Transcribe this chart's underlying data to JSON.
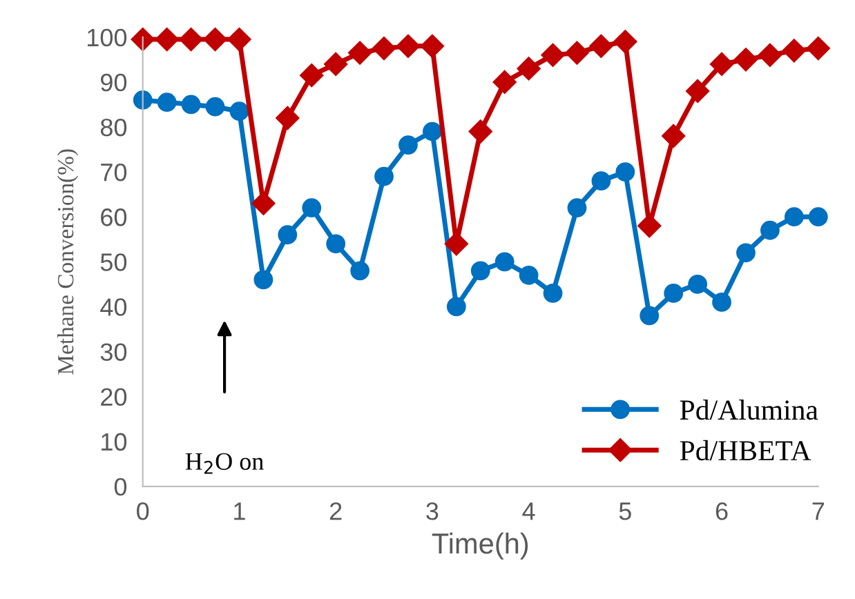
{
  "chart_data": {
    "type": "line",
    "xlabel": "Time(h)",
    "ylabel": "Methane Conversion(%)",
    "x": [
      0,
      0.25,
      0.5,
      0.75,
      1,
      1.25,
      1.5,
      1.75,
      2,
      2.25,
      2.5,
      2.75,
      3,
      3.25,
      3.5,
      3.75,
      4,
      4.25,
      4.5,
      4.75,
      5,
      5.25,
      5.5,
      5.75,
      6,
      6.25,
      6.5,
      6.75,
      7
    ],
    "series": [
      {
        "name": "Pd/Alumina",
        "color": "#0070c0",
        "marker": "circle",
        "values": [
          86,
          85.5,
          85,
          84.5,
          83.5,
          46,
          56,
          62,
          54,
          48,
          69,
          76,
          79,
          40,
          48,
          50,
          47,
          43,
          62,
          68,
          70,
          38,
          43,
          45,
          41,
          52,
          57,
          60,
          60
        ]
      },
      {
        "name": "Pd/HBETA",
        "color": "#c00000",
        "marker": "diamond",
        "values": [
          99.5,
          99.5,
          99.5,
          99.5,
          99.5,
          63,
          82,
          91.5,
          94,
          96.5,
          97.5,
          98,
          98,
          54,
          79,
          90,
          93,
          96,
          96.5,
          98,
          99,
          58,
          78,
          88,
          94,
          95,
          96,
          97,
          97.5
        ]
      }
    ],
    "xlim": [
      0,
      7
    ],
    "xticks": [
      0,
      1,
      2,
      3,
      4,
      5,
      6,
      7
    ],
    "ylim": [
      0,
      100
    ],
    "yticks": [
      0,
      10,
      20,
      30,
      40,
      50,
      60,
      70,
      80,
      90,
      100
    ],
    "grid": false,
    "legend": "bottom right",
    "line_style": "solid",
    "annotations": [
      "H$_{2}$O on"
    ]
  }
}
